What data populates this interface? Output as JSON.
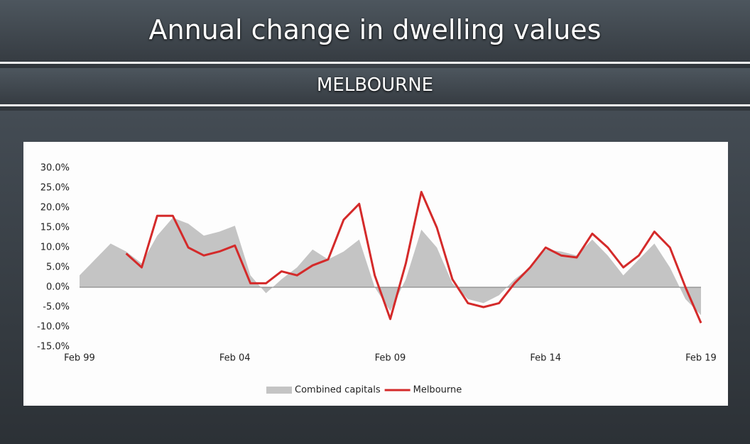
{
  "chart_data": {
    "type": "line",
    "title": "Annual change in dwelling values",
    "subtitle": "MELBOURNE",
    "categories": [
      "Feb 99",
      null,
      null,
      null,
      null,
      null,
      null,
      null,
      null,
      null,
      "Feb 04",
      null,
      null,
      null,
      null,
      null,
      null,
      null,
      null,
      null,
      "Feb 09",
      null,
      null,
      null,
      null,
      null,
      null,
      null,
      null,
      null,
      "Feb 14",
      null,
      null,
      null,
      null,
      null,
      null,
      null,
      null,
      null,
      "Feb 19"
    ],
    "series": [
      {
        "name": "Combined capitals",
        "color": "#c4c4c4",
        "style": "area",
        "values": [
          3,
          7,
          11,
          9,
          6,
          13,
          17.5,
          16,
          13,
          14,
          15.5,
          3,
          -1.5,
          2,
          5,
          9.5,
          7,
          9,
          12,
          0,
          -6,
          2,
          14.5,
          10,
          1,
          -3,
          -4,
          -2,
          2,
          5,
          9.5,
          9,
          8,
          12,
          8,
          3,
          7,
          11,
          5,
          -3,
          -7
        ]
      },
      {
        "name": "Melbourne",
        "color": "#d42a2a",
        "style": "line",
        "values": [
          null,
          null,
          null,
          8.5,
          5,
          18,
          18,
          10,
          8,
          9,
          10.5,
          1,
          1,
          4,
          3,
          5.5,
          7,
          17,
          21,
          3,
          -8,
          6,
          24,
          15,
          2,
          -4,
          -5,
          -4,
          1,
          5,
          10,
          8,
          7.5,
          13.5,
          10,
          5,
          8,
          14,
          10,
          0,
          -9
        ]
      }
    ],
    "ylim": [
      -15,
      30
    ],
    "yticks": [
      {
        "value": 30,
        "label": "30.0%"
      },
      {
        "value": 25,
        "label": "25.0%"
      },
      {
        "value": 20,
        "label": "20.0%"
      },
      {
        "value": 15,
        "label": "15.0%"
      },
      {
        "value": 10,
        "label": "10.0%"
      },
      {
        "value": 5,
        "label": "5.0%"
      },
      {
        "value": 0,
        "label": "0.0%"
      },
      {
        "value": -5,
        "label": "-5.0%"
      },
      {
        "value": -10,
        "label": "-10.0%"
      },
      {
        "value": -15,
        "label": "-15.0%"
      }
    ],
    "legend": "bottom"
  }
}
